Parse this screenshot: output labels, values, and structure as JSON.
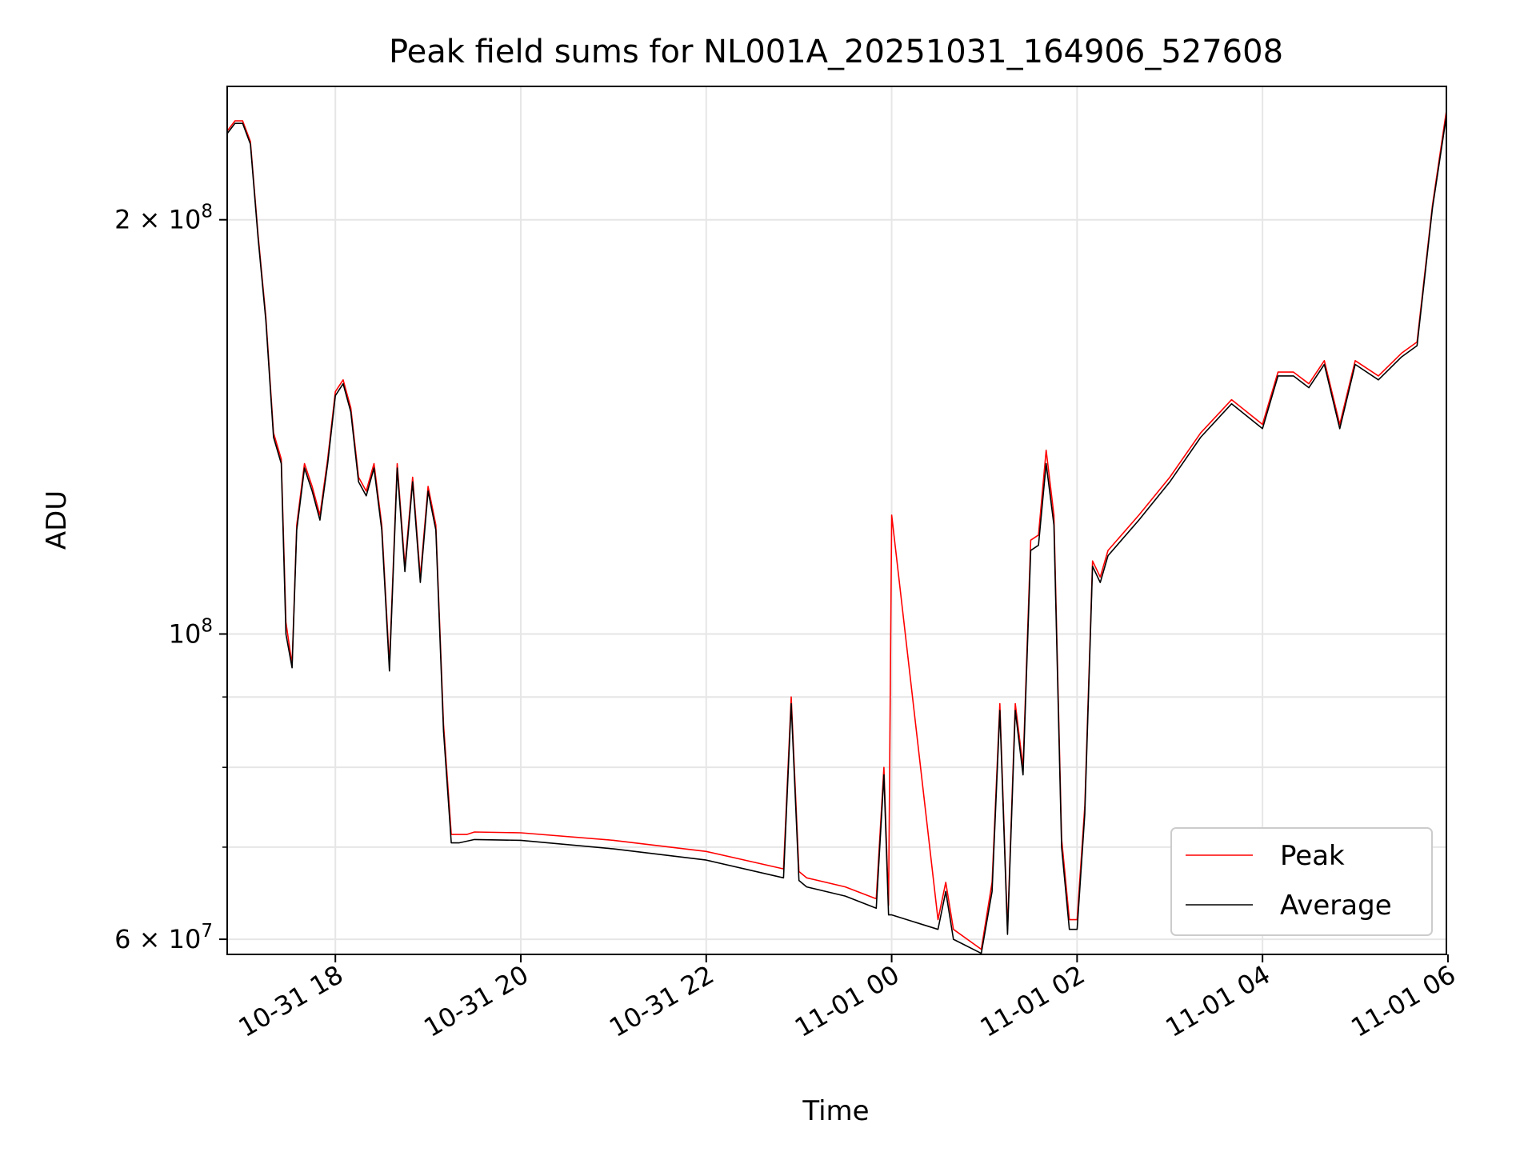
{
  "chart_data": {
    "type": "line",
    "title": "Peak field sums for NL001A_20251031_164906_527608",
    "xlabel": "Time",
    "ylabel": "ADU",
    "y_scale": "log",
    "xlim": [
      "2025-10-31 16:50",
      "2025-11-01 05:59"
    ],
    "ylim": [
      58500000,
      250000000
    ],
    "grid": true,
    "legend_position": "lower right",
    "x_ticks": [
      "10-31 18",
      "10-31 20",
      "10-31 22",
      "11-01 00",
      "11-01 02",
      "11-01 04",
      "11-01 06"
    ],
    "y_ticks": [
      {
        "label_base": "2 × 10",
        "label_exp": "8"
      },
      {
        "label_base": "10",
        "label_exp": "8"
      },
      {
        "label_base": "6 × 10",
        "label_exp": "7"
      }
    ],
    "series": [
      {
        "name": "Peak",
        "color": "#ff0000",
        "x": [
          "2025-10-31 16:50",
          "2025-10-31 16:55",
          "2025-10-31 17:00",
          "2025-10-31 17:05",
          "2025-10-31 17:10",
          "2025-10-31 17:15",
          "2025-10-31 17:20",
          "2025-10-31 17:25",
          "2025-10-31 17:28",
          "2025-10-31 17:32",
          "2025-10-31 17:35",
          "2025-10-31 17:40",
          "2025-10-31 17:45",
          "2025-10-31 17:50",
          "2025-10-31 17:55",
          "2025-10-31 18:00",
          "2025-10-31 18:05",
          "2025-10-31 18:10",
          "2025-10-31 18:15",
          "2025-10-31 18:20",
          "2025-10-31 18:25",
          "2025-10-31 18:30",
          "2025-10-31 18:35",
          "2025-10-31 18:40",
          "2025-10-31 18:45",
          "2025-10-31 18:50",
          "2025-10-31 18:55",
          "2025-10-31 19:00",
          "2025-10-31 19:05",
          "2025-10-31 19:10",
          "2025-10-31 19:15",
          "2025-10-31 19:20",
          "2025-10-31 19:25",
          "2025-10-31 19:30",
          "2025-10-31 20:00",
          "2025-10-31 21:00",
          "2025-10-31 22:00",
          "2025-10-31 22:50",
          "2025-10-31 22:55",
          "2025-10-31 23:00",
          "2025-10-31 23:05",
          "2025-10-31 23:30",
          "2025-10-31 23:50",
          "2025-10-31 23:55",
          "2025-10-31 23:58",
          "2025-11-01 00:00",
          "2025-11-01 00:30",
          "2025-11-01 00:35",
          "2025-11-01 00:40",
          "2025-11-01 00:58",
          "2025-11-01 01:05",
          "2025-11-01 01:10",
          "2025-11-01 01:15",
          "2025-11-01 01:20",
          "2025-11-01 01:25",
          "2025-11-01 01:30",
          "2025-11-01 01:35",
          "2025-11-01 01:40",
          "2025-11-01 01:45",
          "2025-11-01 01:50",
          "2025-11-01 01:55",
          "2025-11-01 02:00",
          "2025-11-01 02:05",
          "2025-11-01 02:10",
          "2025-11-01 02:15",
          "2025-11-01 02:20",
          "2025-11-01 02:40",
          "2025-11-01 03:00",
          "2025-11-01 03:20",
          "2025-11-01 03:40",
          "2025-11-01 04:00",
          "2025-11-01 04:10",
          "2025-11-01 04:20",
          "2025-11-01 04:30",
          "2025-11-01 04:40",
          "2025-11-01 04:50",
          "2025-11-01 05:00",
          "2025-11-01 05:15",
          "2025-11-01 05:30",
          "2025-11-01 05:40",
          "2025-11-01 05:50",
          "2025-11-01 05:59"
        ],
        "y": [
          232000000,
          236000000,
          236000000,
          228000000,
          195000000,
          170000000,
          140000000,
          134000000,
          102000000,
          95000000,
          120000000,
          133000000,
          128000000,
          122000000,
          134000000,
          150000000,
          153000000,
          146000000,
          130000000,
          127000000,
          133000000,
          120000000,
          95000000,
          133000000,
          112000000,
          130000000,
          110000000,
          128000000,
          120000000,
          86000000,
          71500000,
          71500000,
          71500000,
          71800000,
          71700000,
          70800000,
          69500000,
          67500000,
          90000000,
          67200000,
          66500000,
          65500000,
          64200000,
          80000000,
          63500000,
          122000000,
          62000000,
          66000000,
          61000000,
          59000000,
          66000000,
          89000000,
          61000000,
          89000000,
          80000000,
          117000000,
          118000000,
          136000000,
          122000000,
          71000000,
          62000000,
          62000000,
          75000000,
          113000000,
          110000000,
          115000000,
          122000000,
          130000000,
          140000000,
          148000000,
          142000000,
          155000000,
          155000000,
          152000000,
          158000000,
          142000000,
          158000000,
          154000000,
          160000000,
          163000000,
          205000000,
          240000000
        ]
      },
      {
        "name": "Average",
        "color": "#000000",
        "x": [
          "2025-10-31 16:50",
          "2025-10-31 16:55",
          "2025-10-31 17:00",
          "2025-10-31 17:05",
          "2025-10-31 17:10",
          "2025-10-31 17:15",
          "2025-10-31 17:20",
          "2025-10-31 17:25",
          "2025-10-31 17:28",
          "2025-10-31 17:32",
          "2025-10-31 17:35",
          "2025-10-31 17:40",
          "2025-10-31 17:45",
          "2025-10-31 17:50",
          "2025-10-31 17:55",
          "2025-10-31 18:00",
          "2025-10-31 18:05",
          "2025-10-31 18:10",
          "2025-10-31 18:15",
          "2025-10-31 18:20",
          "2025-10-31 18:25",
          "2025-10-31 18:30",
          "2025-10-31 18:35",
          "2025-10-31 18:40",
          "2025-10-31 18:45",
          "2025-10-31 18:50",
          "2025-10-31 18:55",
          "2025-10-31 19:00",
          "2025-10-31 19:05",
          "2025-10-31 19:10",
          "2025-10-31 19:15",
          "2025-10-31 19:20",
          "2025-10-31 19:25",
          "2025-10-31 19:30",
          "2025-10-31 20:00",
          "2025-10-31 21:00",
          "2025-10-31 22:00",
          "2025-10-31 22:50",
          "2025-10-31 22:55",
          "2025-10-31 23:00",
          "2025-10-31 23:05",
          "2025-10-31 23:30",
          "2025-10-31 23:50",
          "2025-10-31 23:55",
          "2025-10-31 23:58",
          "2025-11-01 00:00",
          "2025-11-01 00:30",
          "2025-11-01 00:35",
          "2025-11-01 00:40",
          "2025-11-01 00:58",
          "2025-11-01 01:05",
          "2025-11-01 01:10",
          "2025-11-01 01:15",
          "2025-11-01 01:20",
          "2025-11-01 01:25",
          "2025-11-01 01:30",
          "2025-11-01 01:35",
          "2025-11-01 01:40",
          "2025-11-01 01:45",
          "2025-11-01 01:50",
          "2025-11-01 01:55",
          "2025-11-01 02:00",
          "2025-11-01 02:05",
          "2025-11-01 02:10",
          "2025-11-01 02:15",
          "2025-11-01 02:20",
          "2025-11-01 02:40",
          "2025-11-01 03:00",
          "2025-11-01 03:20",
          "2025-11-01 03:40",
          "2025-11-01 04:00",
          "2025-11-01 04:10",
          "2025-11-01 04:20",
          "2025-11-01 04:30",
          "2025-11-01 04:40",
          "2025-11-01 04:50",
          "2025-11-01 05:00",
          "2025-11-01 05:15",
          "2025-11-01 05:30",
          "2025-11-01 05:40",
          "2025-11-01 05:50",
          "2025-11-01 05:59"
        ],
        "y": [
          231000000,
          235000000,
          235000000,
          227000000,
          194000000,
          169000000,
          139000000,
          133000000,
          100000000,
          94500000,
          119000000,
          132000000,
          127000000,
          121000000,
          133000000,
          149000000,
          152000000,
          145000000,
          129000000,
          126000000,
          132000000,
          119000000,
          94000000,
          132000000,
          111000000,
          129000000,
          109000000,
          127000000,
          119000000,
          85000000,
          70500000,
          70500000,
          70700000,
          70900000,
          70800000,
          69800000,
          68500000,
          66500000,
          89000000,
          66200000,
          65500000,
          64500000,
          63200000,
          79000000,
          62500000,
          62500000,
          61000000,
          65000000,
          60000000,
          58600000,
          65000000,
          88000000,
          60500000,
          88000000,
          79000000,
          115000000,
          116000000,
          133000000,
          120000000,
          70000000,
          61000000,
          61000000,
          74000000,
          112000000,
          109000000,
          114000000,
          121000000,
          129000000,
          139000000,
          147000000,
          141000000,
          154000000,
          154000000,
          151000000,
          157000000,
          141000000,
          157000000,
          153000000,
          159000000,
          162000000,
          204000000,
          238000000
        ]
      }
    ]
  }
}
